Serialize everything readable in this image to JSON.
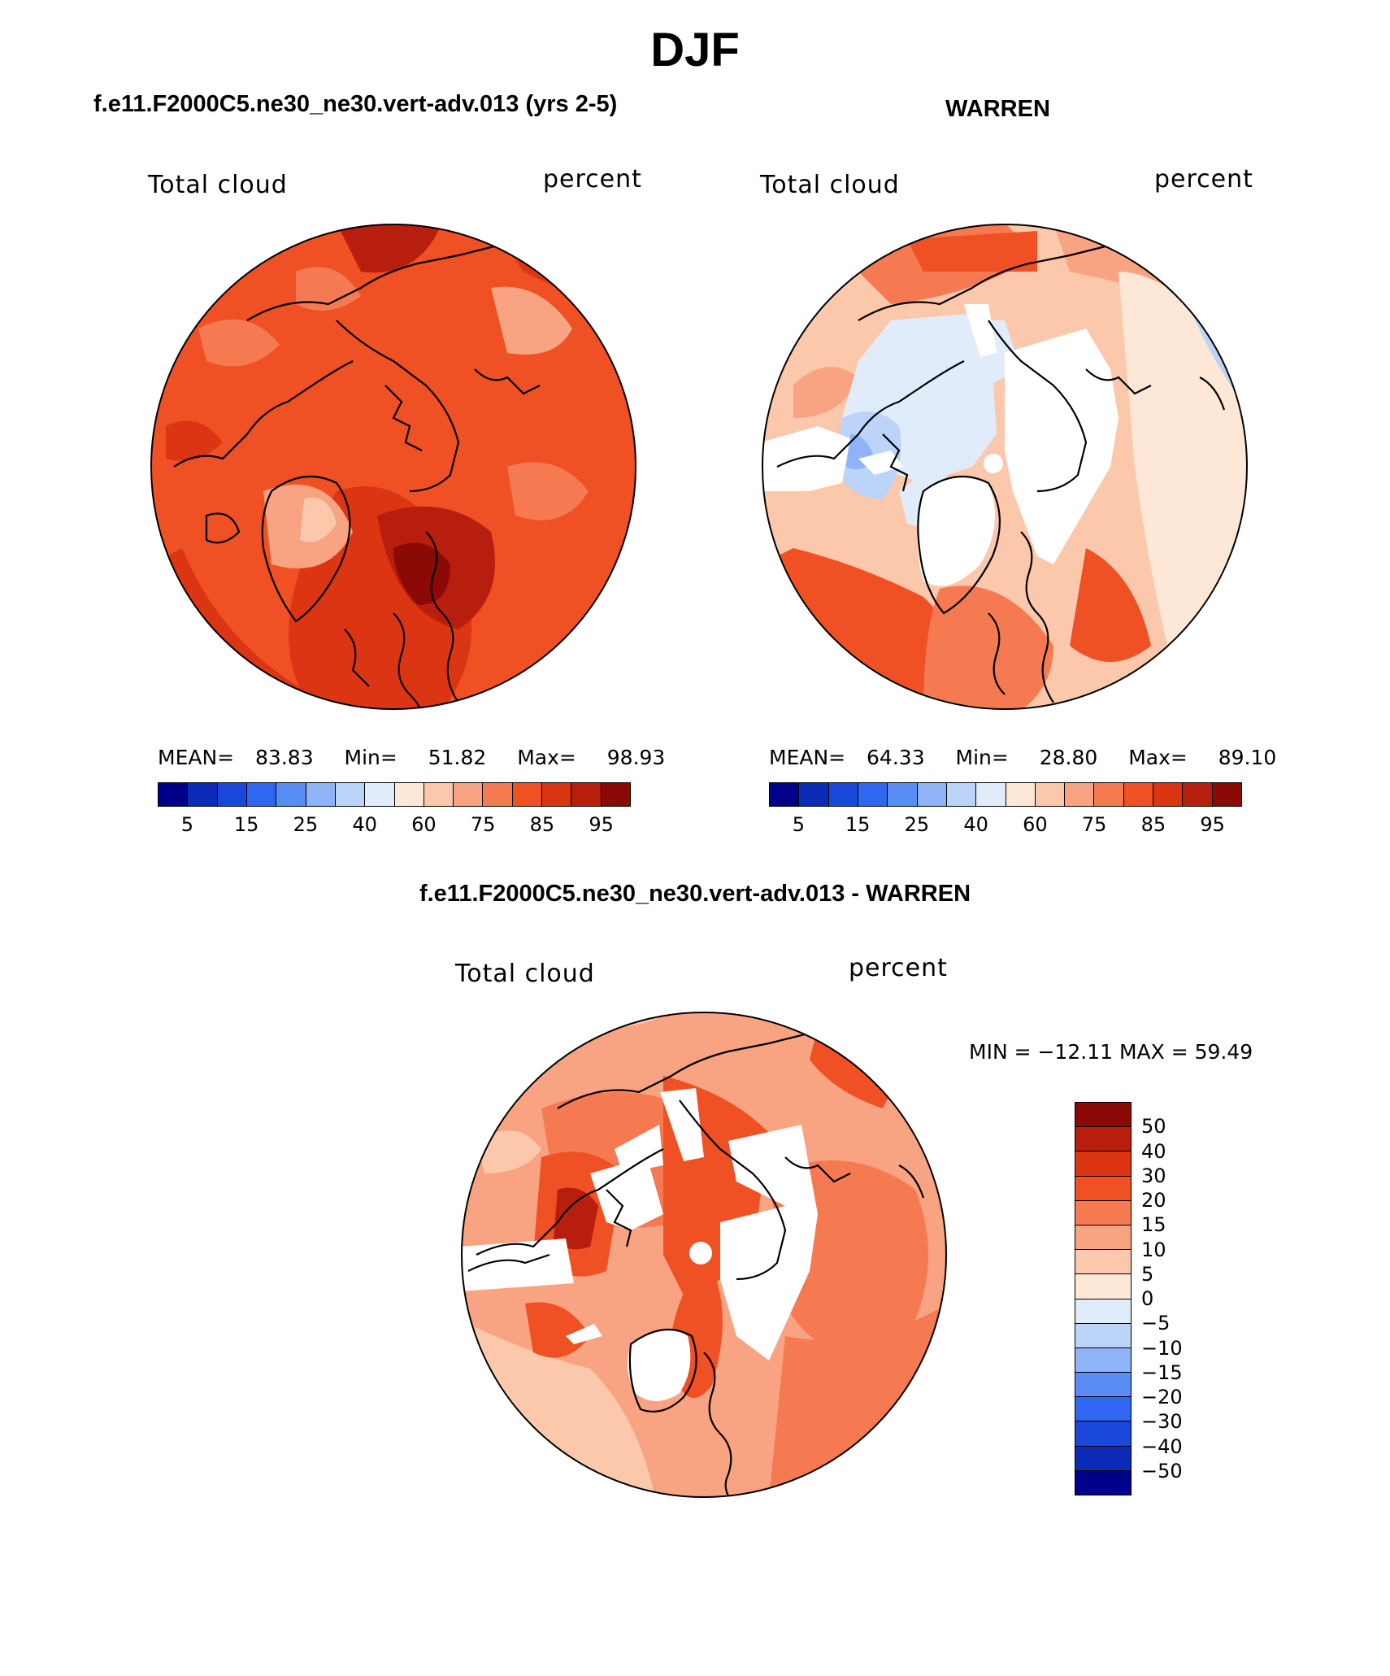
{
  "page_title": "DJF",
  "panels": [
    {
      "case_title": "f.e11.F2000C5.ne30_ne30.vert-adv.013 (yrs 2-5)",
      "left_label": "Total cloud",
      "right_label": "percent",
      "stats": {
        "mean_label": "MEAN=",
        "mean": "83.83",
        "min_label": "Min=",
        "min": "51.82",
        "max_label": "Max=",
        "max": "98.93"
      },
      "colorbar_ticks": [
        "5",
        "15",
        "25",
        "40",
        "60",
        "75",
        "85",
        "95"
      ]
    },
    {
      "case_title": "WARREN",
      "left_label": "Total cloud",
      "right_label": "percent",
      "stats": {
        "mean_label": "MEAN=",
        "mean": "64.33",
        "min_label": "Min=",
        "min": "28.80",
        "max_label": "Max=",
        "max": "89.10"
      },
      "colorbar_ticks": [
        "5",
        "15",
        "25",
        "40",
        "60",
        "75",
        "85",
        "95"
      ]
    }
  ],
  "diff_panel": {
    "case_title": "f.e11.F2000C5.ne30_ne30.vert-adv.013 - WARREN",
    "left_label": "Total cloud",
    "right_label": "percent",
    "minmax_text": "MIN = −12.11 MAX =   59.49",
    "colorbar_labels": [
      "50",
      "40",
      "30",
      "20",
      "15",
      "10",
      "5",
      "0",
      "−5",
      "−10",
      "−15",
      "−20",
      "−30",
      "−40",
      "−50"
    ]
  },
  "colors": {
    "abs_palette": [
      "#00008b",
      "#0a2ab7",
      "#1847d9",
      "#2f66f2",
      "#5a8cf5",
      "#8eb4f7",
      "#bcd4f8",
      "#e1ecfb",
      "#fde8d8",
      "#fbc8ac",
      "#f8a381",
      "#f57a52",
      "#ef5024",
      "#dc3513",
      "#b71e0d",
      "#8b0a06"
    ],
    "diff_palette": [
      "#8b0a06",
      "#b71e0d",
      "#dc3513",
      "#ef5024",
      "#f57a52",
      "#f8a381",
      "#fbc8ac",
      "#fde8d8",
      "#e1ecfb",
      "#bcd4f8",
      "#8eb4f7",
      "#5a8cf5",
      "#2f66f2",
      "#1847d9",
      "#0a2ab7",
      "#00008b"
    ],
    "map_left_base": "#ef5024",
    "map_right_base": "#fbc8ac",
    "map_diff_base": "#f8a381"
  }
}
